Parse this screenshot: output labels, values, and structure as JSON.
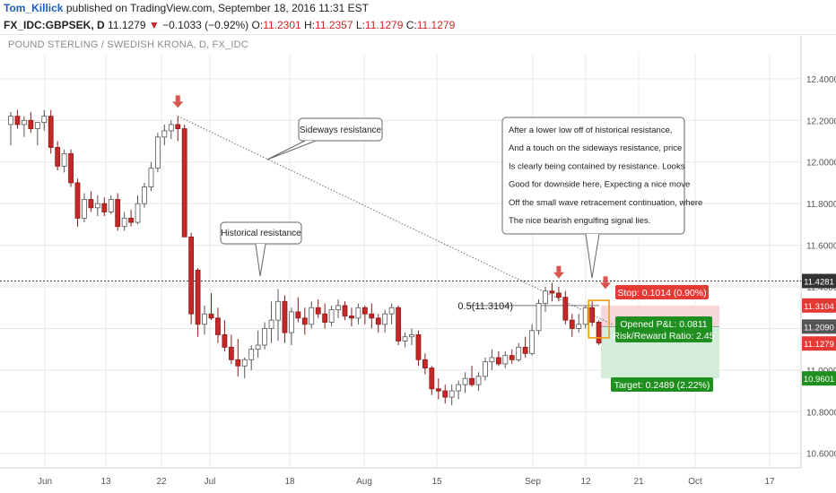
{
  "header": {
    "author": "Tom_Killick",
    "published": "published on TradingView.com, September 18, 2016 11:31 EST",
    "symbol_line": "FX_IDC:GBPSEK, D",
    "last": "11.1279",
    "change_arrow": "▼",
    "change": "−0.1033 (−0.92%)",
    "ohlc": [
      {
        "label": "O:",
        "value": "11.2301"
      },
      {
        "label": "H:",
        "value": "11.2357"
      },
      {
        "label": "L:",
        "value": "11.1279"
      },
      {
        "label": "C:",
        "value": "11.1279"
      }
    ],
    "subtitle": "POUND STERLING / SWEDISH KRONA, D, FX_IDC"
  },
  "colors": {
    "bull_body": "#ffffff",
    "bull_border": "#555555",
    "bear_body": "#c62828",
    "bear_border": "#8b1a1a",
    "grid": "#e8e8e8",
    "axis_text": "#555555",
    "arrow": "#d9534f",
    "stop_zone": "#f8d7da",
    "target_zone": "#d4edda",
    "stop_label": "#e53935",
    "target_label": "#1f8f1f"
  },
  "chart_data": {
    "type": "candlestick",
    "title": "POUND STERLING / SWEDISH KRONA, D, FX_IDC",
    "x_ticks": [
      "Jun",
      "13",
      "22",
      "Jul",
      "18",
      "Aug",
      "15",
      "Sep",
      "12",
      "21",
      "Oct",
      "17"
    ],
    "y_ticks": [
      "12.4000",
      "12.2000",
      "12.0000",
      "11.8000",
      "11.6000",
      "11.4000",
      "11.2000",
      "11.0000",
      "10.8000",
      "10.6000"
    ],
    "ylim": [
      10.53,
      12.52
    ],
    "candles": [
      {
        "o": 12.18,
        "h": 12.24,
        "l": 12.08,
        "c": 12.22
      },
      {
        "o": 12.22,
        "h": 12.25,
        "l": 12.16,
        "c": 12.18
      },
      {
        "o": 12.18,
        "h": 12.22,
        "l": 12.12,
        "c": 12.2
      },
      {
        "o": 12.2,
        "h": 12.24,
        "l": 12.14,
        "c": 12.16
      },
      {
        "o": 12.16,
        "h": 12.19,
        "l": 12.08,
        "c": 12.19
      },
      {
        "o": 12.19,
        "h": 12.25,
        "l": 12.15,
        "c": 12.22
      },
      {
        "o": 12.22,
        "h": 12.25,
        "l": 12.04,
        "c": 12.07
      },
      {
        "o": 12.07,
        "h": 12.1,
        "l": 11.96,
        "c": 11.98
      },
      {
        "o": 11.98,
        "h": 12.06,
        "l": 11.95,
        "c": 12.04
      },
      {
        "o": 12.04,
        "h": 12.06,
        "l": 11.88,
        "c": 11.9
      },
      {
        "o": 11.9,
        "h": 11.92,
        "l": 11.69,
        "c": 11.73
      },
      {
        "o": 11.73,
        "h": 11.85,
        "l": 11.71,
        "c": 11.82
      },
      {
        "o": 11.82,
        "h": 11.86,
        "l": 11.76,
        "c": 11.78
      },
      {
        "o": 11.78,
        "h": 11.84,
        "l": 11.74,
        "c": 11.8
      },
      {
        "o": 11.8,
        "h": 11.83,
        "l": 11.74,
        "c": 11.76
      },
      {
        "o": 11.76,
        "h": 11.84,
        "l": 11.75,
        "c": 11.82
      },
      {
        "o": 11.82,
        "h": 11.85,
        "l": 11.67,
        "c": 11.69
      },
      {
        "o": 11.69,
        "h": 11.76,
        "l": 11.67,
        "c": 11.73
      },
      {
        "o": 11.73,
        "h": 11.77,
        "l": 11.69,
        "c": 11.71
      },
      {
        "o": 11.71,
        "h": 11.84,
        "l": 11.7,
        "c": 11.8
      },
      {
        "o": 11.8,
        "h": 11.9,
        "l": 11.78,
        "c": 11.88
      },
      {
        "o": 11.88,
        "h": 12.0,
        "l": 11.86,
        "c": 11.97
      },
      {
        "o": 11.97,
        "h": 12.14,
        "l": 11.95,
        "c": 12.12
      },
      {
        "o": 12.12,
        "h": 12.18,
        "l": 12.08,
        "c": 12.15
      },
      {
        "o": 12.15,
        "h": 12.2,
        "l": 12.11,
        "c": 12.18
      },
      {
        "o": 12.18,
        "h": 12.22,
        "l": 12.1,
        "c": 12.16
      },
      {
        "o": 12.16,
        "h": 12.18,
        "l": 11.64,
        "c": 11.64
      },
      {
        "o": 11.64,
        "h": 11.66,
        "l": 11.22,
        "c": 11.27
      },
      {
        "o": 11.48,
        "h": 11.49,
        "l": 11.16,
        "c": 11.22
      },
      {
        "o": 11.22,
        "h": 11.31,
        "l": 11.17,
        "c": 11.27
      },
      {
        "o": 11.27,
        "h": 11.37,
        "l": 11.24,
        "c": 11.25
      },
      {
        "o": 11.25,
        "h": 11.3,
        "l": 11.13,
        "c": 11.17
      },
      {
        "o": 11.17,
        "h": 11.24,
        "l": 11.09,
        "c": 11.11
      },
      {
        "o": 11.11,
        "h": 11.17,
        "l": 11.03,
        "c": 11.05
      },
      {
        "o": 11.05,
        "h": 11.15,
        "l": 10.97,
        "c": 11.02
      },
      {
        "o": 11.02,
        "h": 11.06,
        "l": 10.96,
        "c": 11.05
      },
      {
        "o": 11.05,
        "h": 11.12,
        "l": 11.0,
        "c": 11.1
      },
      {
        "o": 11.1,
        "h": 11.19,
        "l": 11.06,
        "c": 11.12
      },
      {
        "o": 11.12,
        "h": 11.23,
        "l": 11.1,
        "c": 11.2
      },
      {
        "o": 11.2,
        "h": 11.33,
        "l": 11.13,
        "c": 11.24
      },
      {
        "o": 11.24,
        "h": 11.39,
        "l": 11.14,
        "c": 11.33
      },
      {
        "o": 11.33,
        "h": 11.36,
        "l": 11.13,
        "c": 11.18
      },
      {
        "o": 11.18,
        "h": 11.3,
        "l": 11.12,
        "c": 11.28
      },
      {
        "o": 11.28,
        "h": 11.35,
        "l": 11.23,
        "c": 11.25
      },
      {
        "o": 11.25,
        "h": 11.3,
        "l": 11.17,
        "c": 11.22
      },
      {
        "o": 11.22,
        "h": 11.33,
        "l": 11.2,
        "c": 11.3
      },
      {
        "o": 11.3,
        "h": 11.34,
        "l": 11.25,
        "c": 11.27
      },
      {
        "o": 11.27,
        "h": 11.32,
        "l": 11.2,
        "c": 11.23
      },
      {
        "o": 11.23,
        "h": 11.31,
        "l": 11.21,
        "c": 11.29
      },
      {
        "o": 11.29,
        "h": 11.34,
        "l": 11.25,
        "c": 11.31
      },
      {
        "o": 11.31,
        "h": 11.33,
        "l": 11.24,
        "c": 11.26
      },
      {
        "o": 11.26,
        "h": 11.3,
        "l": 11.21,
        "c": 11.25
      },
      {
        "o": 11.25,
        "h": 11.32,
        "l": 11.22,
        "c": 11.3
      },
      {
        "o": 11.3,
        "h": 11.31,
        "l": 11.22,
        "c": 11.27
      },
      {
        "o": 11.27,
        "h": 11.32,
        "l": 11.2,
        "c": 11.25
      },
      {
        "o": 11.25,
        "h": 11.27,
        "l": 11.18,
        "c": 11.22
      },
      {
        "o": 11.22,
        "h": 11.29,
        "l": 11.18,
        "c": 11.27
      },
      {
        "o": 11.27,
        "h": 11.32,
        "l": 11.22,
        "c": 11.3
      },
      {
        "o": 11.3,
        "h": 11.31,
        "l": 11.12,
        "c": 11.14
      },
      {
        "o": 11.14,
        "h": 11.18,
        "l": 11.11,
        "c": 11.16
      },
      {
        "o": 11.16,
        "h": 11.2,
        "l": 11.12,
        "c": 11.17
      },
      {
        "o": 11.17,
        "h": 11.19,
        "l": 11.02,
        "c": 11.05
      },
      {
        "o": 11.05,
        "h": 11.08,
        "l": 10.98,
        "c": 11.01
      },
      {
        "o": 11.01,
        "h": 11.02,
        "l": 10.88,
        "c": 10.91
      },
      {
        "o": 10.91,
        "h": 10.96,
        "l": 10.86,
        "c": 10.9
      },
      {
        "o": 10.9,
        "h": 10.93,
        "l": 10.84,
        "c": 10.87
      },
      {
        "o": 10.87,
        "h": 10.93,
        "l": 10.83,
        "c": 10.9
      },
      {
        "o": 10.9,
        "h": 10.95,
        "l": 10.86,
        "c": 10.93
      },
      {
        "o": 10.93,
        "h": 10.99,
        "l": 10.89,
        "c": 10.96
      },
      {
        "o": 10.96,
        "h": 11.02,
        "l": 10.92,
        "c": 10.93
      },
      {
        "o": 10.93,
        "h": 10.99,
        "l": 10.9,
        "c": 10.97
      },
      {
        "o": 10.97,
        "h": 11.06,
        "l": 10.95,
        "c": 11.04
      },
      {
        "o": 11.04,
        "h": 11.1,
        "l": 11.0,
        "c": 11.06
      },
      {
        "o": 11.06,
        "h": 11.09,
        "l": 11.02,
        "c": 11.03
      },
      {
        "o": 11.03,
        "h": 11.09,
        "l": 11.01,
        "c": 11.07
      },
      {
        "o": 11.07,
        "h": 11.1,
        "l": 11.03,
        "c": 11.05
      },
      {
        "o": 11.05,
        "h": 11.13,
        "l": 11.04,
        "c": 11.11
      },
      {
        "o": 11.11,
        "h": 11.16,
        "l": 11.06,
        "c": 11.08
      },
      {
        "o": 11.08,
        "h": 11.22,
        "l": 11.07,
        "c": 11.19
      },
      {
        "o": 11.19,
        "h": 11.34,
        "l": 11.17,
        "c": 11.32
      },
      {
        "o": 11.32,
        "h": 11.4,
        "l": 11.28,
        "c": 11.38
      },
      {
        "o": 11.38,
        "h": 11.42,
        "l": 11.33,
        "c": 11.37
      },
      {
        "o": 11.37,
        "h": 11.4,
        "l": 11.33,
        "c": 11.35
      },
      {
        "o": 11.35,
        "h": 11.38,
        "l": 11.22,
        "c": 11.24
      },
      {
        "o": 11.24,
        "h": 11.27,
        "l": 11.16,
        "c": 11.2
      },
      {
        "o": 11.2,
        "h": 11.27,
        "l": 11.18,
        "c": 11.22
      },
      {
        "o": 11.22,
        "h": 11.31,
        "l": 11.2,
        "c": 11.3
      },
      {
        "o": 11.3,
        "h": 11.33,
        "l": 11.21,
        "c": 11.23
      },
      {
        "o": 11.23,
        "h": 11.24,
        "l": 11.12,
        "c": 11.13
      }
    ],
    "annotations": {
      "levels": [
        {
          "name": "historical-resistance",
          "value": 11.4281,
          "label": "11.4281"
        },
        {
          "name": "fib-level",
          "value": 11.3104,
          "label": "0.5(11.3104)"
        }
      ],
      "trendline": {
        "start": {
          "index": 25,
          "value": 12.22
        },
        "end": {
          "index": 90,
          "value": 11.22
        }
      },
      "callouts": [
        {
          "text": "Sideways resistance"
        },
        {
          "text": "Historical resistance"
        },
        {
          "lines": [
            "After a lower low off of historical resistance,",
            "And a touch on the sideways resistance, price",
            "Is clearly being contained by resistance. Looks",
            "Good for downside here, Expecting a nice move",
            "Off the small wave retracement continuation, where",
            "The nice bearish engulfing signal lies."
          ]
        }
      ],
      "arrows": [
        {
          "index": 25,
          "value": 12.26
        },
        {
          "index": 82,
          "value": 11.44
        },
        {
          "index": 89,
          "value": 11.39
        }
      ],
      "position": {
        "entry": 11.209,
        "stop": 11.3104,
        "target": 10.9601,
        "stop_label": "Stop: 0.1014 (0.90%)",
        "pnl_label": "Opened P&L: 0.0811",
        "rr_label": "Risk/Reward Ratio: 2.45",
        "target_label": "Target: 0.2489 (2.22%)"
      },
      "price_tags": [
        {
          "value": 11.4281,
          "label": "11.4281",
          "style": "dark"
        },
        {
          "value": 11.3104,
          "label": "11.3104",
          "style": "red"
        },
        {
          "value": 11.209,
          "label": "11.2090",
          "style": "gray"
        },
        {
          "value": 11.1279,
          "label": "11.1279",
          "style": "red"
        },
        {
          "value": 10.9601,
          "label": "10.9601",
          "style": "green"
        }
      ]
    }
  }
}
